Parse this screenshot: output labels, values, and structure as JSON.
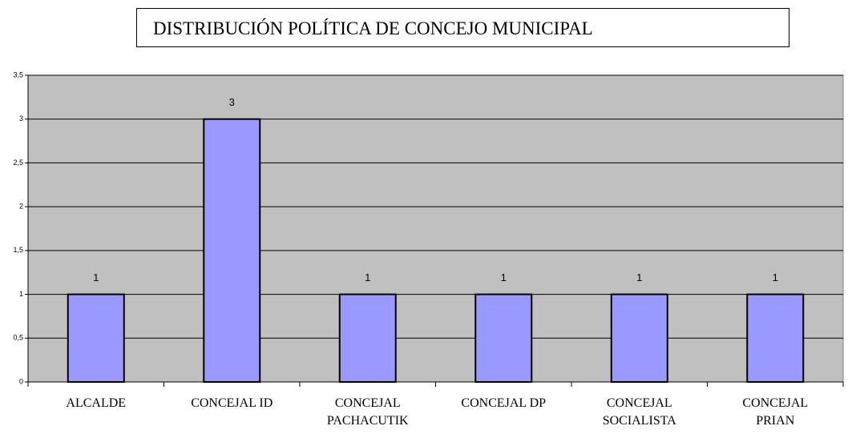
{
  "chart_data": {
    "type": "bar",
    "title": "DISTRIBUCIÓN POLÍTICA DE CONCEJO MUNICIPAL",
    "categories": [
      "ALCALDE",
      "CONCEJAL ID",
      "CONCEJAL PACHACUTIK",
      "CONCEJAL DP",
      "CONCEJAL SOCIALISTA",
      "CONCEJAL PRIAN"
    ],
    "values": [
      1,
      3,
      1,
      1,
      1,
      1
    ],
    "color": "#9999ff",
    "ylim": [
      0,
      3.5
    ],
    "yticks": [
      0,
      {
        "value": 0.5,
        "label": "0,5"
      },
      1,
      {
        "value": 1.5,
        "label": "1,5"
      },
      2,
      {
        "value": 2.5,
        "label": "2,5"
      },
      3,
      {
        "value": 3.5,
        "label": "3,5"
      }
    ],
    "grid": true
  }
}
